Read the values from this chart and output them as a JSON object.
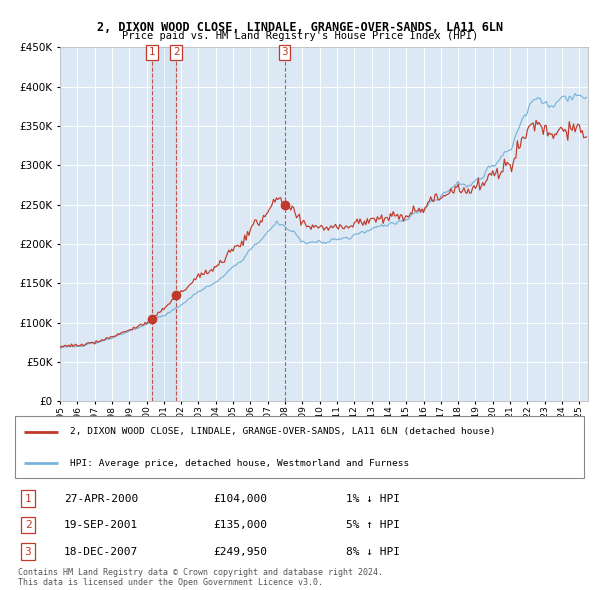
{
  "title": "2, DIXON WOOD CLOSE, LINDALE, GRANGE-OVER-SANDS, LA11 6LN",
  "subtitle": "Price paid vs. HM Land Registry's House Price Index (HPI)",
  "bg_color": "#dce9f5",
  "hpi_color": "#7ab3d9",
  "price_color": "#c0392b",
  "ylim": [
    0,
    450000
  ],
  "yticks": [
    0,
    50000,
    100000,
    150000,
    200000,
    250000,
    300000,
    350000,
    400000,
    450000
  ],
  "sale1_date": 2000.32,
  "sale1_price": 104000,
  "sale2_date": 2001.72,
  "sale2_price": 135000,
  "sale3_date": 2007.97,
  "sale3_price": 249950,
  "legend_label_price": "2, DIXON WOOD CLOSE, LINDALE, GRANGE-OVER-SANDS, LA11 6LN (detached house)",
  "legend_label_hpi": "HPI: Average price, detached house, Westmorland and Furness",
  "table_rows": [
    {
      "num": "1",
      "date": "27-APR-2000",
      "price": "£104,000",
      "hpi": "1% ↓ HPI"
    },
    {
      "num": "2",
      "date": "19-SEP-2001",
      "price": "£135,000",
      "hpi": "5% ↑ HPI"
    },
    {
      "num": "3",
      "date": "18-DEC-2007",
      "price": "£249,950",
      "hpi": "8% ↓ HPI"
    }
  ],
  "footnote": "Contains HM Land Registry data © Crown copyright and database right 2024.\nThis data is licensed under the Open Government Licence v3.0.",
  "xstart": 1995.0,
  "xend": 2025.5
}
